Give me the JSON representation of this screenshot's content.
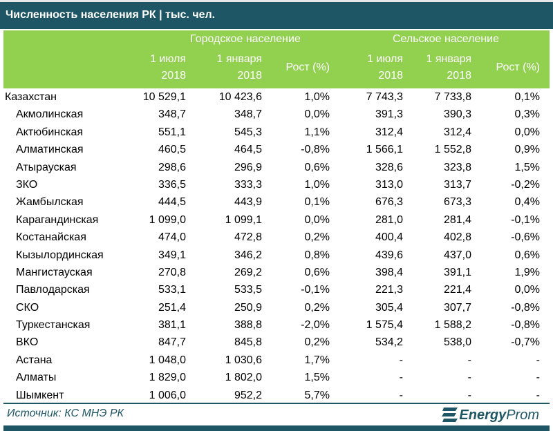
{
  "title": "Численность населения РК | тыс. чел.",
  "header": {
    "urban": "Городское население",
    "rural": "Сельское население",
    "jul": "1 июля",
    "jan": "1 января",
    "year": "2018",
    "growth": "Рост (%)"
  },
  "rows": [
    [
      "Казахстан",
      "10 529,1",
      "10 423,6",
      "1,0%",
      "7 743,3",
      "7 733,8",
      "0,1%"
    ],
    [
      "Акмолинская",
      "348,7",
      "348,7",
      "0,0%",
      "391,3",
      "390,3",
      "0,3%"
    ],
    [
      "Актюбинская",
      "551,1",
      "545,3",
      "1,1%",
      "312,4",
      "312,4",
      "0,0%"
    ],
    [
      "Алматинская",
      "460,5",
      "464,5",
      "-0,8%",
      "1 566,1",
      "1 552,8",
      "0,9%"
    ],
    [
      "Атырауская",
      "298,6",
      "296,9",
      "0,6%",
      "328,6",
      "323,8",
      "1,5%"
    ],
    [
      "ЗКО",
      "336,5",
      "333,3",
      "1,0%",
      "313,0",
      "313,7",
      "-0,2%"
    ],
    [
      "Жамбылская",
      "444,5",
      "443,9",
      "0,1%",
      "676,3",
      "673,3",
      "0,4%"
    ],
    [
      "Карагандинская",
      "1 099,0",
      "1 099,1",
      "0,0%",
      "281,0",
      "281,4",
      "-0,1%"
    ],
    [
      "Костанайская",
      "474,0",
      "472,8",
      "0,2%",
      "400,4",
      "402,8",
      "-0,6%"
    ],
    [
      "Кызылординская",
      "349,1",
      "346,2",
      "0,8%",
      "439,6",
      "437,0",
      "0,6%"
    ],
    [
      "Мангистауская",
      "270,8",
      "269,2",
      "0,6%",
      "398,4",
      "391,1",
      "1,9%"
    ],
    [
      "Павлодарская",
      "533,1",
      "533,5",
      "-0,1%",
      "221,3",
      "221,4",
      "0,0%"
    ],
    [
      "СКО",
      "251,4",
      "250,9",
      "0,2%",
      "305,4",
      "307,7",
      "-0,8%"
    ],
    [
      "Туркестанская",
      "381,1",
      "388,8",
      "-2,0%",
      "1 575,4",
      "1 588,2",
      "-0,8%"
    ],
    [
      "ВКО",
      "847,7",
      "845,8",
      "0,2%",
      "534,2",
      "538,0",
      "-0,7%"
    ],
    [
      "Астана",
      "1 048,0",
      "1 030,6",
      "1,7%",
      "-",
      "-",
      "-"
    ],
    [
      "Алматы",
      "1 829,0",
      "1 802,0",
      "1,5%",
      "-",
      "-",
      "-"
    ],
    [
      "Шымкент",
      "1 006,0",
      "952,2",
      "5,7%",
      "-",
      "-",
      "-"
    ]
  ],
  "footer": {
    "source": "Источник: КС МНЭ РК",
    "logo_bold": "Energy",
    "logo_rest": "Prom"
  },
  "colors": {
    "title_bg": "#1e5665",
    "header_bg": "#92d050"
  }
}
